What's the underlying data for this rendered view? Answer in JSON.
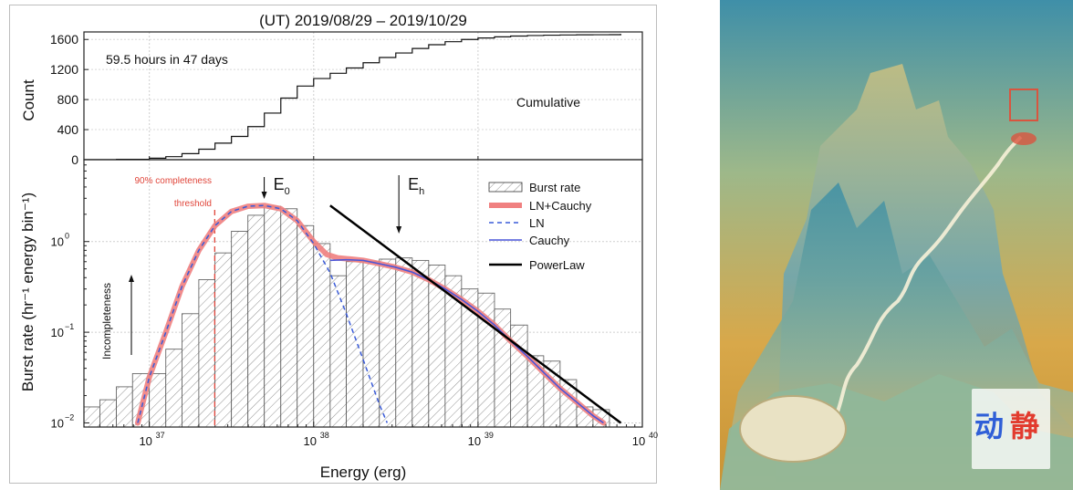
{
  "chart_data": [
    {
      "type": "line",
      "title": "(UT) 2019/08/29 – 2019/10/29",
      "ylabel": "Count",
      "ylim": [
        0,
        1700
      ],
      "yticks": [
        0,
        400,
        800,
        1200,
        1600
      ],
      "annotations": {
        "duration": "59.5 hours in 47 days",
        "curve_label": "Cumulative"
      },
      "series": [
        {
          "name": "Cumulative",
          "step": true,
          "x": [
            3.98e+36,
            6.31e+36,
            1e+37,
            1.26e+37,
            1.58e+37,
            2e+37,
            2.51e+37,
            3.16e+37,
            3.98e+37,
            5.01e+37,
            6.31e+37,
            7.94e+37,
            1e+38,
            1.26e+38,
            1.58e+38,
            2e+38,
            2.51e+38,
            3.16e+38,
            3.98e+38,
            5.01e+38,
            6.31e+38,
            7.94e+38,
            1e+39,
            1.26e+39,
            1.58e+39,
            2e+39,
            2.51e+39,
            3.16e+39,
            3.98e+39,
            5.01e+39,
            6.31e+39,
            7.4e+39
          ],
          "values": [
            0,
            5,
            20,
            40,
            80,
            140,
            220,
            310,
            440,
            620,
            820,
            980,
            1080,
            1150,
            1220,
            1290,
            1360,
            1420,
            1480,
            1530,
            1570,
            1600,
            1620,
            1635,
            1645,
            1652,
            1657,
            1660,
            1662,
            1663,
            1664,
            1665
          ]
        }
      ]
    },
    {
      "type": "bar",
      "xlabel": "Energy (erg)",
      "ylabel": "Burst rate (hr⁻¹ energy bin⁻¹)",
      "x_scale": "log",
      "y_scale": "log",
      "xlim": [
        4e+36,
        1e+40
      ],
      "ylim": [
        0.009,
        8
      ],
      "xticks": [
        1e+37,
        1e+38,
        1e+39,
        1e+40
      ],
      "xtick_labels": {
        "base": "10",
        "exponents": [
          "37",
          "38",
          "39",
          "40"
        ]
      },
      "ytick_labels": [
        {
          "value": 0.01,
          "base": "10",
          "exp": "−2"
        },
        {
          "value": 0.1,
          "base": "10",
          "exp": "−1"
        },
        {
          "value": 1,
          "base": "10",
          "exp": "0"
        }
      ],
      "annotations": {
        "threshold_line1": "90% completeness",
        "threshold_line2": "threshold",
        "threshold_energy": 2.5e+37,
        "incompleteness": "Incompleteness",
        "e0_letter": "E",
        "e0_sub": "0",
        "e0_energy": 5e+37,
        "eh_letter": "E",
        "eh_sub": "h",
        "eh_energy": 3.3e+38
      },
      "histogram": {
        "name": "Burst rate",
        "bin_edges": [
          4e+36,
          5e+36,
          6.3e+36,
          7.9e+36,
          1e+37,
          1.26e+37,
          1.58e+37,
          2e+37,
          2.51e+37,
          3.16e+37,
          3.98e+37,
          5.01e+37,
          6.31e+37,
          7.94e+37,
          1e+38,
          1.26e+38,
          1.58e+38,
          2e+38,
          2.51e+38,
          3.16e+38,
          3.98e+38,
          5.01e+38,
          6.31e+38,
          7.94e+38,
          1e+39,
          1.26e+39,
          1.58e+39,
          2e+39,
          2.51e+39,
          3.16e+39,
          3.98e+39,
          5.01e+39,
          6.31e+39
        ],
        "values": [
          0.015,
          0.018,
          0.025,
          0.035,
          0.035,
          0.065,
          0.16,
          0.38,
          0.75,
          1.3,
          1.95,
          2.45,
          2.3,
          1.5,
          0.95,
          0.42,
          0.6,
          0.6,
          0.64,
          0.66,
          0.62,
          0.55,
          0.42,
          0.3,
          0.27,
          0.18,
          0.12,
          0.055,
          0.048,
          0.03,
          0.015,
          0.014
        ]
      },
      "series": [
        {
          "name": "LN+Cauchy",
          "color": "#f08080",
          "x": [
            8.5e+36,
            1e+37,
            1.26e+37,
            1.58e+37,
            2e+37,
            2.51e+37,
            3.16e+37,
            3.98e+37,
            5.01e+37,
            6.31e+37,
            7.94e+37,
            1e+38,
            1.2e+38,
            1.4e+38,
            1.7e+38,
            2e+38,
            2.51e+38,
            3.16e+38,
            3.98e+38,
            5.01e+38,
            6.31e+38,
            7.94e+38,
            1e+39,
            1.26e+39,
            1.58e+39,
            2e+39,
            2.51e+39,
            3.16e+39,
            3.98e+39,
            5.01e+39,
            5.8e+39
          ],
          "values": [
            0.01,
            0.032,
            0.1,
            0.32,
            0.8,
            1.5,
            2.15,
            2.45,
            2.5,
            2.3,
            1.7,
            1.0,
            0.72,
            0.66,
            0.64,
            0.62,
            0.57,
            0.52,
            0.46,
            0.38,
            0.3,
            0.23,
            0.17,
            0.12,
            0.08,
            0.054,
            0.036,
            0.024,
            0.017,
            0.012,
            0.01
          ]
        },
        {
          "name": "LN",
          "color": "#3a5bd8",
          "x": [
            8.5e+36,
            1e+37,
            1.26e+37,
            1.58e+37,
            2e+37,
            2.51e+37,
            3.16e+37,
            3.98e+37,
            5.01e+37,
            6.31e+37,
            7.94e+37,
            1e+38,
            1.26e+38,
            1.58e+38,
            2e+38,
            2.51e+38,
            2.8e+38
          ],
          "values": [
            0.01,
            0.032,
            0.1,
            0.32,
            0.8,
            1.5,
            2.15,
            2.45,
            2.5,
            2.3,
            1.7,
            0.95,
            0.45,
            0.16,
            0.05,
            0.016,
            0.01
          ]
        },
        {
          "name": "Cauchy",
          "color": "#4a55d8",
          "x": [
            1.26e+38,
            1.58e+38,
            2e+38,
            2.51e+38,
            3.16e+38,
            3.98e+38,
            5.01e+38,
            6.31e+38,
            7.94e+38,
            1e+39,
            1.26e+39,
            1.58e+39,
            2e+39,
            2.51e+39,
            3.16e+39,
            3.98e+39,
            5.01e+39,
            5.8e+39
          ],
          "values": [
            0.62,
            0.63,
            0.62,
            0.57,
            0.52,
            0.46,
            0.38,
            0.3,
            0.23,
            0.17,
            0.12,
            0.08,
            0.054,
            0.036,
            0.024,
            0.017,
            0.012,
            0.01
          ]
        },
        {
          "name": "PowerLaw",
          "color": "#000000",
          "x": [
            1.26e+38,
            7.4e+39
          ],
          "values": [
            2.5,
            0.01
          ]
        }
      ],
      "legend": {
        "placement": "top-right",
        "entries": [
          "Burst rate",
          "LN+Cauchy",
          "LN",
          "Cauchy",
          "PowerLaw"
        ]
      }
    }
  ],
  "artwork": {
    "logo_text_1": "动",
    "logo_text_2": "静"
  }
}
